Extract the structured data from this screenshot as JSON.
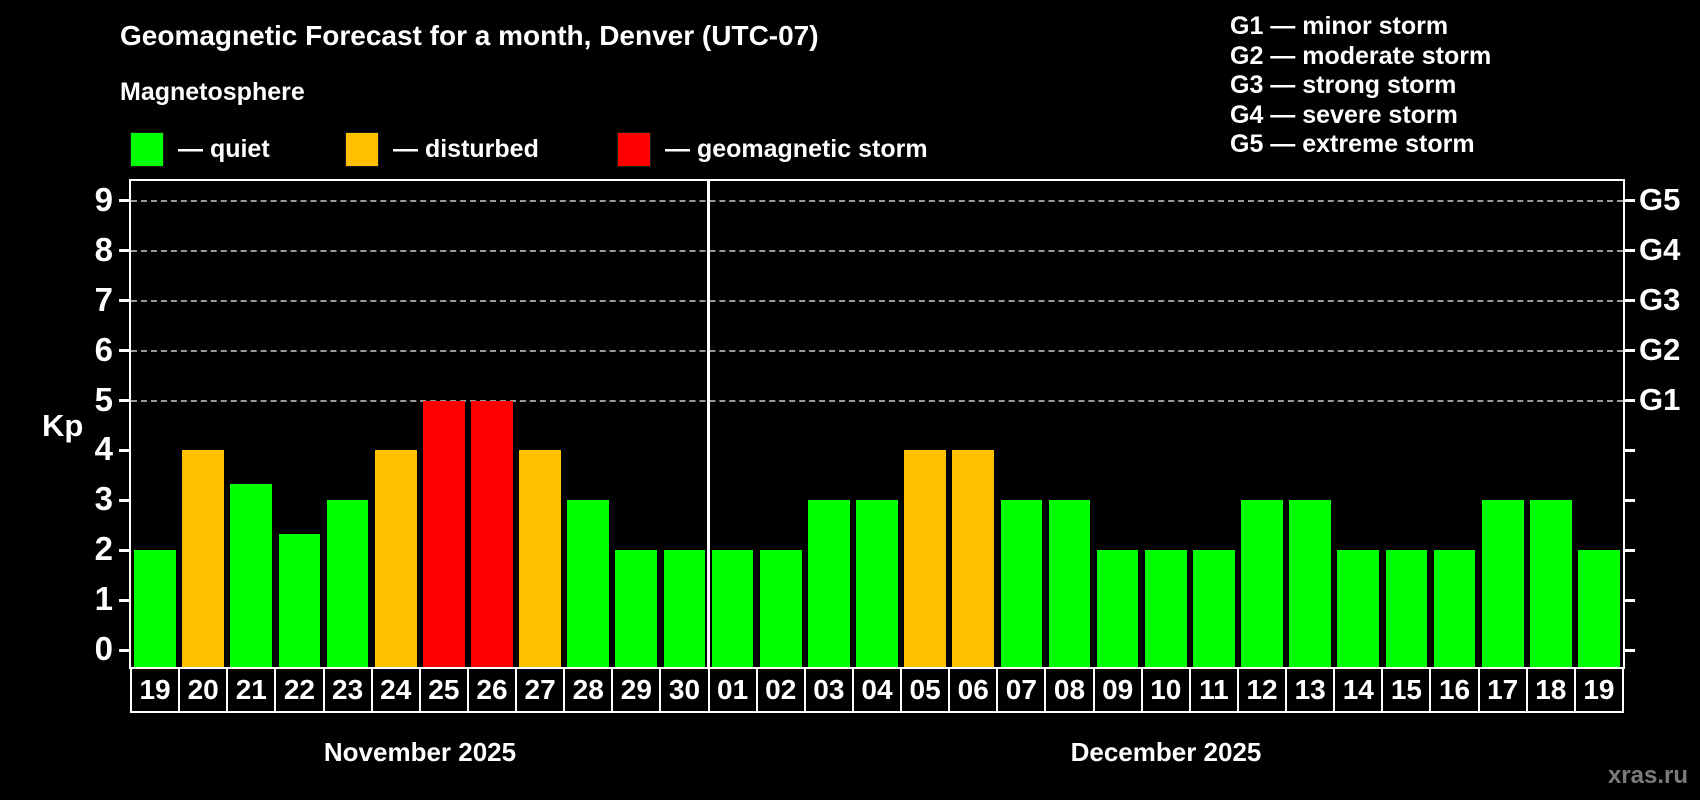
{
  "title": "Geomagnetic Forecast for a month, Denver (UTC-07)",
  "subtitle": "Magnetosphere",
  "bar_legend": [
    {
      "status": "quiet",
      "label": "— quiet"
    },
    {
      "status": "disturbed",
      "label": "— disturbed"
    },
    {
      "status": "storm",
      "label": "— geomagnetic storm"
    }
  ],
  "g_legend": [
    "G1 — minor storm",
    "G2 — moderate storm",
    "G3 — strong storm",
    "G4 — severe storm",
    "G5 — extreme storm"
  ],
  "watermark": "xras.ru",
  "colors": {
    "quiet": "#00ff00",
    "disturbed": "#ffc000",
    "storm": "#ff0000",
    "grid": "#9a9a9a",
    "axis": "#ffffff",
    "background": "#000000",
    "watermark": "#7b7b7b"
  },
  "chart_data": {
    "type": "bar",
    "ylabel": "Kp",
    "ylim": [
      0,
      9
    ],
    "yticks": [
      0,
      1,
      2,
      3,
      4,
      5,
      6,
      7,
      8,
      9
    ],
    "gridlines": [
      5,
      6,
      7,
      8,
      9
    ],
    "grid_style": "dashed horizontal",
    "right_axis_labels": [
      {
        "value": 5,
        "label": "G1"
      },
      {
        "value": 6,
        "label": "G2"
      },
      {
        "value": 7,
        "label": "G3"
      },
      {
        "value": 8,
        "label": "G4"
      },
      {
        "value": 9,
        "label": "G5"
      }
    ],
    "legend_position": "top-left",
    "months": [
      {
        "label": "November 2025",
        "days": [
          {
            "day": "19",
            "kp": 2,
            "status": "quiet"
          },
          {
            "day": "20",
            "kp": 4,
            "status": "disturbed"
          },
          {
            "day": "21",
            "kp": 3.33,
            "status": "quiet"
          },
          {
            "day": "22",
            "kp": 2.33,
            "status": "quiet"
          },
          {
            "day": "23",
            "kp": 3,
            "status": "quiet"
          },
          {
            "day": "24",
            "kp": 4,
            "status": "disturbed"
          },
          {
            "day": "25",
            "kp": 5,
            "status": "storm"
          },
          {
            "day": "26",
            "kp": 5,
            "status": "storm"
          },
          {
            "day": "27",
            "kp": 4,
            "status": "disturbed"
          },
          {
            "day": "28",
            "kp": 3,
            "status": "quiet"
          },
          {
            "day": "29",
            "kp": 2,
            "status": "quiet"
          },
          {
            "day": "30",
            "kp": 2,
            "status": "quiet"
          }
        ]
      },
      {
        "label": "December 2025",
        "days": [
          {
            "day": "01",
            "kp": 2,
            "status": "quiet"
          },
          {
            "day": "02",
            "kp": 2,
            "status": "quiet"
          },
          {
            "day": "03",
            "kp": 3,
            "status": "quiet"
          },
          {
            "day": "04",
            "kp": 3,
            "status": "quiet"
          },
          {
            "day": "05",
            "kp": 4,
            "status": "disturbed"
          },
          {
            "day": "06",
            "kp": 4,
            "status": "disturbed"
          },
          {
            "day": "07",
            "kp": 3,
            "status": "quiet"
          },
          {
            "day": "08",
            "kp": 3,
            "status": "quiet"
          },
          {
            "day": "09",
            "kp": 2,
            "status": "quiet"
          },
          {
            "day": "10",
            "kp": 2,
            "status": "quiet"
          },
          {
            "day": "11",
            "kp": 2,
            "status": "quiet"
          },
          {
            "day": "12",
            "kp": 3,
            "status": "quiet"
          },
          {
            "day": "13",
            "kp": 3,
            "status": "quiet"
          },
          {
            "day": "14",
            "kp": 2,
            "status": "quiet"
          },
          {
            "day": "15",
            "kp": 2,
            "status": "quiet"
          },
          {
            "day": "16",
            "kp": 2,
            "status": "quiet"
          },
          {
            "day": "17",
            "kp": 3,
            "status": "quiet"
          },
          {
            "day": "18",
            "kp": 3,
            "status": "quiet"
          },
          {
            "day": "19",
            "kp": 2,
            "status": "quiet"
          }
        ]
      }
    ]
  }
}
